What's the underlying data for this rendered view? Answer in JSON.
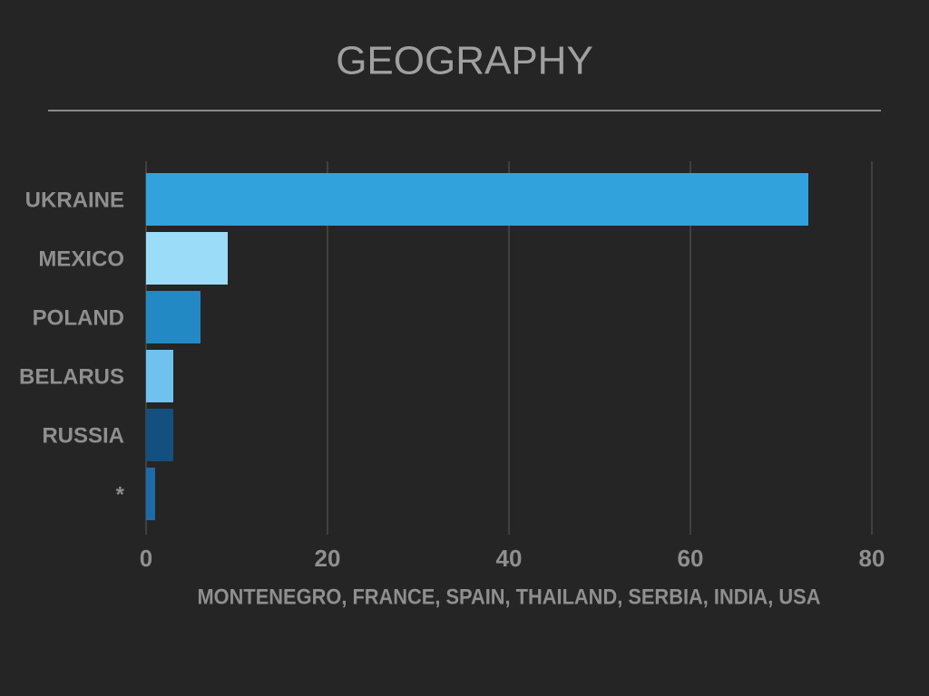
{
  "chart_data": {
    "type": "bar",
    "orientation": "horizontal",
    "title": "GEOGRAPHY",
    "categories": [
      "UKRAINE",
      "MEXICO",
      "POLAND",
      "BELARUS",
      "RUSSIA",
      "*"
    ],
    "values": [
      73,
      9,
      6,
      3,
      3,
      1
    ],
    "colors": [
      "#31a2db",
      "#9bdcf8",
      "#2389c4",
      "#6fc2ee",
      "#13507f",
      "#1a6ba8"
    ],
    "xlim": [
      0,
      80
    ],
    "xticks": [
      0,
      20,
      40,
      60,
      80
    ],
    "grid": true,
    "xlabel": "MONTENEGRO, FRANCE,  SPAIN, THAILAND, SERBIA, INDIA, USA"
  }
}
